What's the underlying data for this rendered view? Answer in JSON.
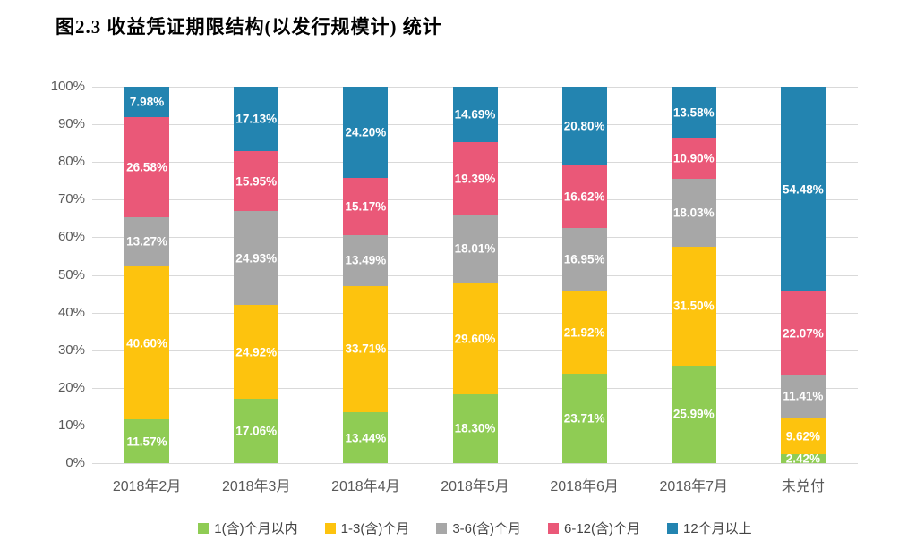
{
  "title": "图2.3 收益凭证期限结构(以发行规模计) 统计",
  "colors": {
    "background": "#ffffff",
    "title_text": "#000000",
    "grid": "#d9d9d9",
    "axis_text": "#595959",
    "legend_text": "#444444",
    "data_label_text": "#ffffff"
  },
  "chart_data": {
    "type": "bar",
    "variant": "stacked-100-percent-column",
    "title": "图2.3 收益凭证期限结构(以发行规模计) 统计",
    "xlabel": "",
    "ylabel": "",
    "ylim": [
      0,
      100
    ],
    "grid": true,
    "legend_position": "bottom",
    "y_ticks": [
      "100%",
      "90%",
      "80%",
      "70%",
      "60%",
      "50%",
      "40%",
      "30%",
      "20%",
      "10%",
      "0%"
    ],
    "categories": [
      "2018年2月",
      "2018年3月",
      "2018年4月",
      "2018年5月",
      "2018年6月",
      "2018年7月",
      "未兑付"
    ],
    "series": [
      {
        "name": "1(含)个月以内",
        "color": "#8fcc54",
        "values": [
          11.57,
          17.06,
          13.44,
          18.3,
          23.71,
          25.99,
          2.42
        ]
      },
      {
        "name": "1-3(含)个月",
        "color": "#fdc30e",
        "values": [
          40.6,
          24.92,
          33.71,
          29.6,
          21.92,
          31.5,
          9.62
        ]
      },
      {
        "name": "3-6(含)个月",
        "color": "#a7a7a7",
        "values": [
          13.27,
          24.93,
          13.49,
          18.01,
          16.95,
          18.03,
          11.41
        ]
      },
      {
        "name": "6-12(含)个月",
        "color": "#ea5878",
        "values": [
          26.58,
          15.95,
          15.17,
          19.39,
          16.62,
          10.9,
          22.07
        ]
      },
      {
        "name": "12个月以上",
        "color": "#2384b0",
        "values": [
          7.98,
          17.13,
          24.2,
          14.69,
          20.8,
          13.58,
          54.48
        ]
      }
    ],
    "data_label_format": "0.00%"
  }
}
